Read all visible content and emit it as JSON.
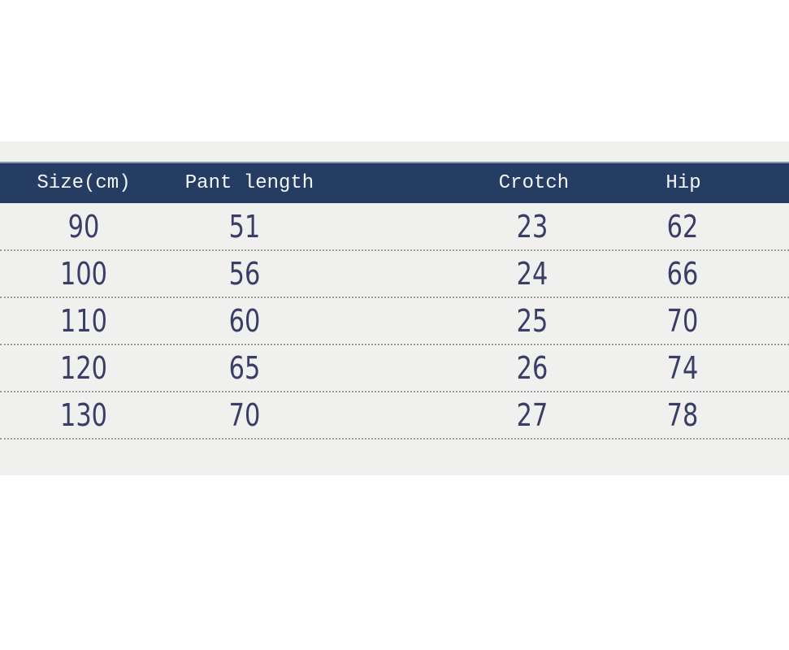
{
  "chart_data": {
    "type": "table",
    "columns": [
      "Size(cm)",
      "Pant length",
      "Crotch",
      "Hip"
    ],
    "rows": [
      [
        "90",
        "51",
        "23",
        "62"
      ],
      [
        "100",
        "56",
        "24",
        "66"
      ],
      [
        "110",
        "60",
        "25",
        "70"
      ],
      [
        "120",
        "65",
        "26",
        "74"
      ],
      [
        "130",
        "70",
        "27",
        "78"
      ]
    ],
    "layout_hints": {
      "header_position": "top",
      "row_separator": "dotted",
      "grid": "horizontal-only"
    }
  },
  "colors": {
    "header_background": "#263d63",
    "header_highlight_top": "#8495b2",
    "header_text": "#f4f6f8",
    "panel_background": "#f0f0ee",
    "body_text": "#3a3e66",
    "separator_dots": "#9a9a9a",
    "page_background": "#ffffff"
  }
}
